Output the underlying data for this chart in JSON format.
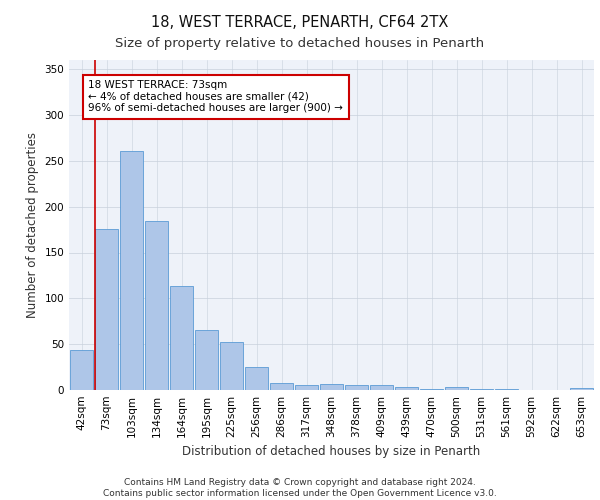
{
  "title1": "18, WEST TERRACE, PENARTH, CF64 2TX",
  "title2": "Size of property relative to detached houses in Penarth",
  "xlabel": "Distribution of detached houses by size in Penarth",
  "ylabel": "Number of detached properties",
  "categories": [
    "42sqm",
    "73sqm",
    "103sqm",
    "134sqm",
    "164sqm",
    "195sqm",
    "225sqm",
    "256sqm",
    "286sqm",
    "317sqm",
    "348sqm",
    "378sqm",
    "409sqm",
    "439sqm",
    "470sqm",
    "500sqm",
    "531sqm",
    "561sqm",
    "592sqm",
    "622sqm",
    "653sqm"
  ],
  "values": [
    44,
    176,
    261,
    184,
    113,
    65,
    52,
    25,
    8,
    6,
    7,
    6,
    5,
    3,
    1,
    3,
    1,
    1,
    0,
    0,
    2
  ],
  "bar_color": "#aec6e8",
  "bar_edge_color": "#5b9bd5",
  "highlight_bar_index": 1,
  "highlight_line_color": "#cc0000",
  "annotation_text": "18 WEST TERRACE: 73sqm\n← 4% of detached houses are smaller (42)\n96% of semi-detached houses are larger (900) →",
  "annotation_box_color": "#ffffff",
  "annotation_box_edge": "#cc0000",
  "background_color": "#eef2f9",
  "footer_text": "Contains HM Land Registry data © Crown copyright and database right 2024.\nContains public sector information licensed under the Open Government Licence v3.0.",
  "ylim": [
    0,
    360
  ],
  "yticks": [
    0,
    50,
    100,
    150,
    200,
    250,
    300,
    350
  ],
  "title1_fontsize": 10.5,
  "title2_fontsize": 9.5,
  "xlabel_fontsize": 8.5,
  "ylabel_fontsize": 8.5,
  "tick_fontsize": 7.5,
  "footer_fontsize": 6.5
}
